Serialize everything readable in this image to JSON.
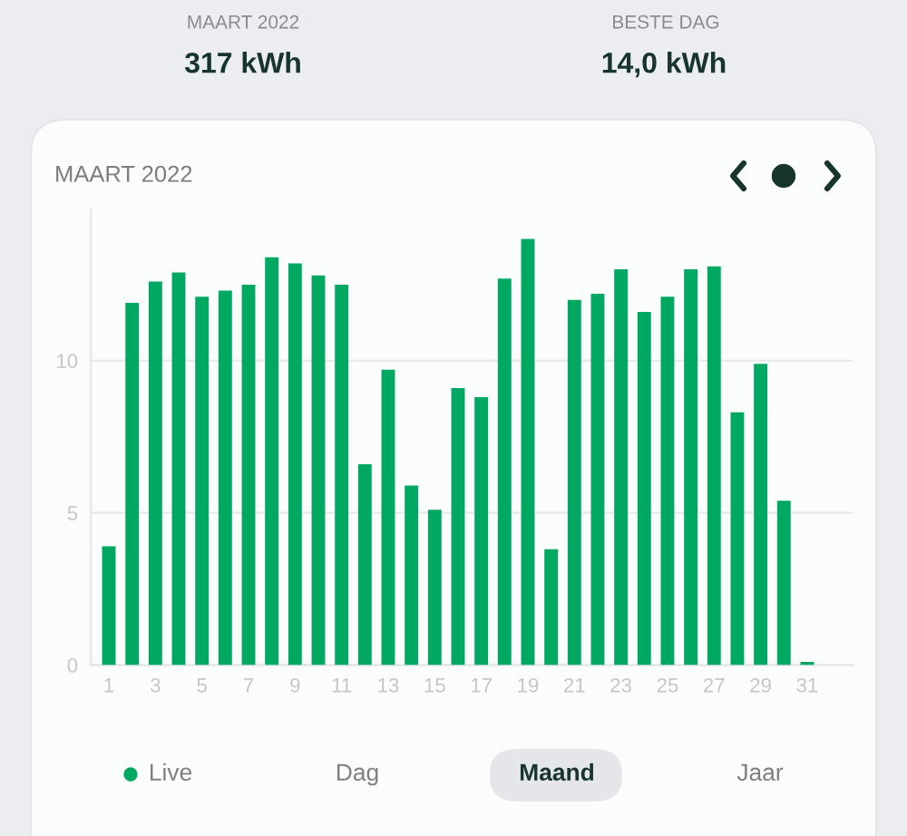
{
  "chart_data": {
    "type": "bar",
    "title": "MAART 2022",
    "categories": [
      "1",
      null,
      "3",
      null,
      "5",
      null,
      "7",
      null,
      "9",
      null,
      "11",
      null,
      "13",
      null,
      "15",
      null,
      "17",
      null,
      "19",
      null,
      "21",
      null,
      "23",
      null,
      "25",
      null,
      "27",
      null,
      "29",
      null,
      "31"
    ],
    "series": [
      {
        "color": "#00a862",
        "values": [
          3.9,
          11.9,
          12.6,
          12.9,
          12.1,
          12.3,
          12.5,
          13.4,
          13.2,
          12.8,
          12.5,
          6.6,
          9.7,
          5.9,
          5.1,
          9.1,
          8.8,
          12.7,
          14.0,
          3.8,
          12.0,
          12.2,
          13.0,
          11.6,
          12.1,
          13.0,
          13.1,
          8.3,
          9.9,
          5.4,
          0.1
        ]
      }
    ],
    "ylim": [
      0,
      15
    ],
    "yticks": [
      0,
      5,
      10
    ],
    "grid": "y",
    "annotations": [
      "MAART 2022",
      "317 kWh",
      "BESTE DAG",
      "14,0 kWh",
      "Live",
      "Dag",
      "Maand",
      "Jaar"
    ]
  }
}
